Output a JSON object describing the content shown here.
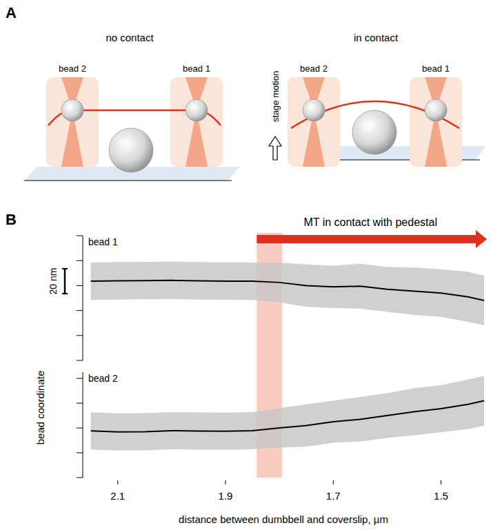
{
  "panel_a": {
    "letter": "A",
    "left_title": "no contact",
    "right_title": "in contact",
    "bead_left": "bead 2",
    "bead_right": "bead 1",
    "stage_label": "stage motion"
  },
  "panel_b": {
    "letter": "B",
    "ylabel": "bead coordinate",
    "scale_bar": {
      "value": 20,
      "label": "20 nm"
    }
  },
  "chart_data": [
    {
      "type": "line",
      "title": "bead 1",
      "x": [
        2.15,
        2.1,
        2.05,
        2.0,
        1.95,
        1.9,
        1.85,
        1.8,
        1.75,
        1.7,
        1.65,
        1.6,
        1.55,
        1.5,
        1.45,
        1.42
      ],
      "values": [
        63.5,
        63.8,
        64,
        64.2,
        63.8,
        63.6,
        63.5,
        62.5,
        60,
        59,
        59.5,
        57,
        55.5,
        54,
        51,
        48
      ],
      "spread": [
        15,
        15,
        15,
        15,
        15,
        15,
        15,
        16,
        17,
        17,
        18,
        18,
        19,
        19,
        20,
        20
      ],
      "color": "#000000",
      "xlim": [
        2.165,
        1.42
      ],
      "xticks": [
        2.1,
        1.9,
        1.7,
        1.5
      ],
      "ylim": [
        0,
        100
      ],
      "yticks": [
        0,
        20,
        40,
        60,
        80,
        100
      ],
      "tick_labels": false,
      "annotation": {
        "text": "MT in contact with pedestal",
        "x": 1.842,
        "band": [
          1.842,
          1.795
        ]
      }
    },
    {
      "type": "line",
      "title": "bead 2",
      "x": [
        2.15,
        2.1,
        2.05,
        2.0,
        1.95,
        1.9,
        1.85,
        1.8,
        1.75,
        1.7,
        1.65,
        1.6,
        1.55,
        1.5,
        1.45,
        1.42
      ],
      "values": [
        37.6,
        36.8,
        37,
        37.8,
        37.5,
        37.3,
        37.8,
        40,
        42,
        45,
        47,
        50,
        53,
        55.5,
        59,
        62
      ],
      "spread": [
        15,
        15,
        15,
        15,
        15,
        15,
        15,
        16,
        17,
        17,
        18,
        18,
        19,
        19,
        20,
        20
      ],
      "color": "#000000",
      "xlim": [
        2.165,
        1.42
      ],
      "xticks": [
        2.1,
        1.9,
        1.7,
        1.5
      ],
      "ylim": [
        0,
        85
      ],
      "yticks": [
        0,
        20,
        40,
        60,
        80
      ],
      "tick_labels": "x",
      "xlabel": "distance between dumbbell and coverslip, µm"
    }
  ]
}
